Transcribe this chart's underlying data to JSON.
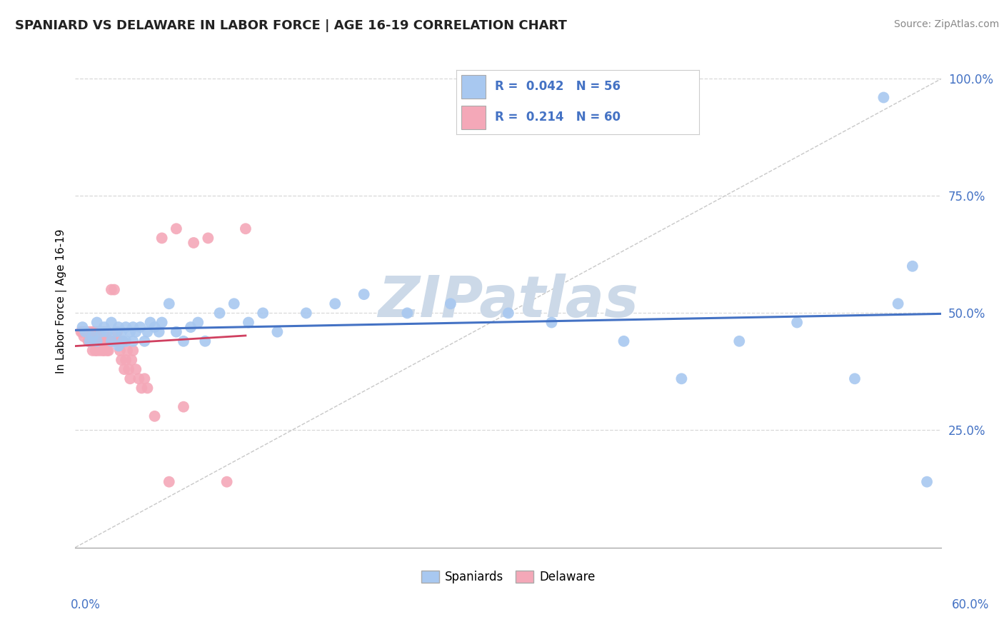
{
  "title": "SPANIARD VS DELAWARE IN LABOR FORCE | AGE 16-19 CORRELATION CHART",
  "source": "Source: ZipAtlas.com",
  "ylabel": "In Labor Force | Age 16-19",
  "xmin": 0.0,
  "xmax": 0.6,
  "ymin": 0.0,
  "ymax": 1.05,
  "yticks": [
    0.25,
    0.5,
    0.75,
    1.0
  ],
  "ytick_labels": [
    "25.0%",
    "50.0%",
    "75.0%",
    "100.0%"
  ],
  "blue_color": "#a8c8f0",
  "pink_color": "#f4a8b8",
  "blue_line_color": "#4472c4",
  "red_line_color": "#d04060",
  "gray_line_color": "#c8c8c8",
  "watermark": "ZIPatlas",
  "watermark_color": "#ccd9e8",
  "spaniards_x": [
    0.005,
    0.007,
    0.01,
    0.012,
    0.015,
    0.015,
    0.018,
    0.02,
    0.022,
    0.025,
    0.025,
    0.028,
    0.03,
    0.03,
    0.032,
    0.033,
    0.035,
    0.035,
    0.038,
    0.04,
    0.04,
    0.042,
    0.045,
    0.048,
    0.05,
    0.052,
    0.055,
    0.058,
    0.06,
    0.065,
    0.07,
    0.075,
    0.08,
    0.085,
    0.09,
    0.1,
    0.11,
    0.12,
    0.13,
    0.14,
    0.16,
    0.18,
    0.2,
    0.23,
    0.26,
    0.3,
    0.33,
    0.38,
    0.42,
    0.46,
    0.5,
    0.54,
    0.56,
    0.57,
    0.58,
    0.59
  ],
  "spaniards_y": [
    0.47,
    0.46,
    0.44,
    0.45,
    0.48,
    0.44,
    0.46,
    0.47,
    0.46,
    0.48,
    0.44,
    0.46,
    0.47,
    0.43,
    0.46,
    0.44,
    0.47,
    0.44,
    0.46,
    0.47,
    0.44,
    0.46,
    0.47,
    0.44,
    0.46,
    0.48,
    0.47,
    0.46,
    0.48,
    0.52,
    0.46,
    0.44,
    0.47,
    0.48,
    0.44,
    0.5,
    0.52,
    0.48,
    0.5,
    0.46,
    0.5,
    0.52,
    0.54,
    0.5,
    0.52,
    0.5,
    0.48,
    0.44,
    0.36,
    0.44,
    0.48,
    0.36,
    0.96,
    0.52,
    0.6,
    0.14
  ],
  "delaware_x": [
    0.004,
    0.005,
    0.006,
    0.007,
    0.008,
    0.009,
    0.01,
    0.01,
    0.011,
    0.012,
    0.012,
    0.013,
    0.013,
    0.014,
    0.014,
    0.015,
    0.015,
    0.016,
    0.017,
    0.018,
    0.018,
    0.019,
    0.019,
    0.02,
    0.02,
    0.021,
    0.022,
    0.022,
    0.023,
    0.024,
    0.025,
    0.026,
    0.027,
    0.028,
    0.029,
    0.03,
    0.031,
    0.032,
    0.033,
    0.034,
    0.035,
    0.036,
    0.037,
    0.038,
    0.039,
    0.04,
    0.042,
    0.044,
    0.046,
    0.048,
    0.05,
    0.055,
    0.06,
    0.065,
    0.07,
    0.075,
    0.082,
    0.092,
    0.105,
    0.118
  ],
  "delaware_y": [
    0.46,
    0.46,
    0.45,
    0.46,
    0.46,
    0.44,
    0.44,
    0.46,
    0.44,
    0.46,
    0.42,
    0.44,
    0.46,
    0.42,
    0.44,
    0.46,
    0.42,
    0.44,
    0.42,
    0.44,
    0.46,
    0.42,
    0.44,
    0.42,
    0.46,
    0.44,
    0.42,
    0.46,
    0.42,
    0.44,
    0.55,
    0.44,
    0.55,
    0.44,
    0.46,
    0.44,
    0.42,
    0.4,
    0.44,
    0.38,
    0.4,
    0.42,
    0.38,
    0.36,
    0.4,
    0.42,
    0.38,
    0.36,
    0.34,
    0.36,
    0.34,
    0.28,
    0.66,
    0.14,
    0.68,
    0.3,
    0.65,
    0.66,
    0.14,
    0.68
  ],
  "legend_items": [
    {
      "label": "R = 0.042   N = 56",
      "color": "#a8c8f0"
    },
    {
      "label": "R =  0.214   N = 60",
      "color": "#f4a8b8"
    }
  ]
}
